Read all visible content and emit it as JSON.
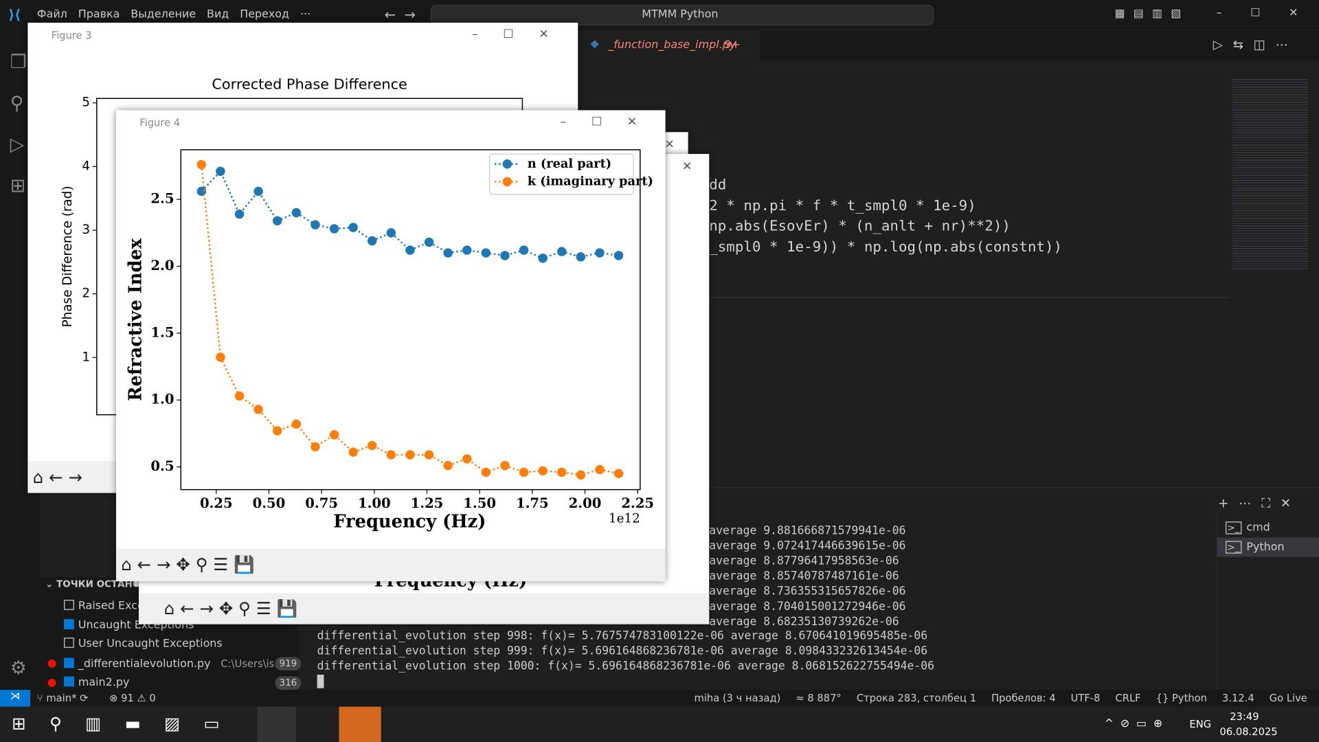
{
  "titlebar": {
    "menu": [
      "Файл",
      "Правка",
      "Выделение",
      "Вид",
      "Переход",
      "···"
    ],
    "search": "MTMM Python"
  },
  "editor": {
    "tab": {
      "name": "_function_base_impl.py",
      "badge": "9+"
    },
    "lines": [
      "dd",
      "2 * np.pi * f * t_smpl0 * 1e-9)",
      "np.abs(EsovEr) * (n_anlt + nr)**2))",
      "_smpl0 * 1e-9)) * np.log(np.abs(constnt))"
    ]
  },
  "terminal": {
    "partial_lines": [
      "average 9.881666871579941e-06",
      "average 9.072417446639615e-06",
      "average 8.87796417958563e-06",
      "average 8.85740787487161e-06",
      "average 8.736355315657826e-06",
      "average 8.704015001272946e-06",
      "average 8.68235130739262e-06"
    ],
    "lines": [
      "differential_evolution step 998: f(x)= 5.767574783100122e-06 average 8.670641019695485e-06",
      "differential_evolution step 999: f(x)= 5.696164868236781e-06 average 8.098433232613454e-06",
      "differential_evolution step 1000: f(x)= 5.696164868236781e-06 average 8.068152622755494e-06"
    ],
    "tabs": [
      "cmd",
      "Python"
    ]
  },
  "breakpoints": {
    "title": "ТОЧКИ ОСТАНОВ",
    "items": [
      "Raised Exceptions",
      "Uncaught Exceptions",
      "User Uncaught Exceptions"
    ],
    "files": [
      {
        "name": "_differentialevolution.py",
        "path": "C:\\Users\\is...",
        "count": "919"
      },
      {
        "name": "main2.py",
        "count": "316"
      }
    ]
  },
  "statusbar": {
    "branch": "main*",
    "errors": "91",
    "warnings": "0",
    "right": [
      "miha (3 ч назад)",
      "≈ 8 887°",
      "Строка 283, столбец 1",
      "Пробелов: 4",
      "UTF-8",
      "CRLF",
      "{} Python",
      "3.12.4",
      "Go Live"
    ]
  },
  "taskbar": {
    "lang": "ENG",
    "time": "23:49",
    "date": "06.08.2025"
  },
  "windows": {
    "figure3": "Figure 3",
    "figure4": "Figure 4",
    "hidden_xlabel": "Frequency (Hz)"
  },
  "chart_data": [
    {
      "type": "line",
      "title": "Corrected Phase Difference",
      "y_label": "Phase Difference (rad)",
      "ylim": [
        0.1,
        5.07
      ],
      "yticks": [
        1,
        2,
        3,
        4,
        5
      ]
    },
    {
      "type": "line",
      "x_label": "Frequency (Hz)",
      "y_label": "Refractive Index",
      "x_offset_label": "1e12",
      "legend": "upper right",
      "x": [
        0.18,
        0.27,
        0.36,
        0.45,
        0.54,
        0.63,
        0.72,
        0.81,
        0.9,
        0.99,
        1.08,
        1.17,
        1.26,
        1.35,
        1.44,
        1.53,
        1.62,
        1.71,
        1.8,
        1.89,
        1.98,
        2.07,
        2.16
      ],
      "series": [
        {
          "name": "n (real part)",
          "color": "#1f77b4",
          "values": [
            2.56,
            2.71,
            2.39,
            2.56,
            2.34,
            2.4,
            2.31,
            2.28,
            2.29,
            2.19,
            2.25,
            2.12,
            2.18,
            2.1,
            2.12,
            2.1,
            2.08,
            2.12,
            2.06,
            2.11,
            2.07,
            2.1,
            2.08
          ]
        },
        {
          "name": "k (imaginary part)",
          "color": "#ff7f0e",
          "values": [
            2.76,
            1.32,
            1.03,
            0.93,
            0.77,
            0.82,
            0.65,
            0.74,
            0.61,
            0.66,
            0.59,
            0.59,
            0.59,
            0.51,
            0.56,
            0.46,
            0.51,
            0.46,
            0.47,
            0.46,
            0.44,
            0.48,
            0.45
          ]
        }
      ],
      "xlim": [
        0.082,
        2.262
      ],
      "xticks": [
        0.25,
        {
          "value": 0.5,
          "label": "0.50"
        },
        0.75,
        {
          "value": 1,
          "label": "1.00"
        },
        1.25,
        {
          "value": 1.5,
          "label": "1.50"
        },
        1.75,
        {
          "value": 2,
          "label": "2.00"
        },
        2.25
      ],
      "ylim": [
        0.33,
        2.871
      ],
      "yticks": [
        0.5,
        {
          "value": 1,
          "label": "1.0"
        },
        1.5,
        {
          "value": 2,
          "label": "2.0"
        },
        2.5
      ]
    }
  ]
}
